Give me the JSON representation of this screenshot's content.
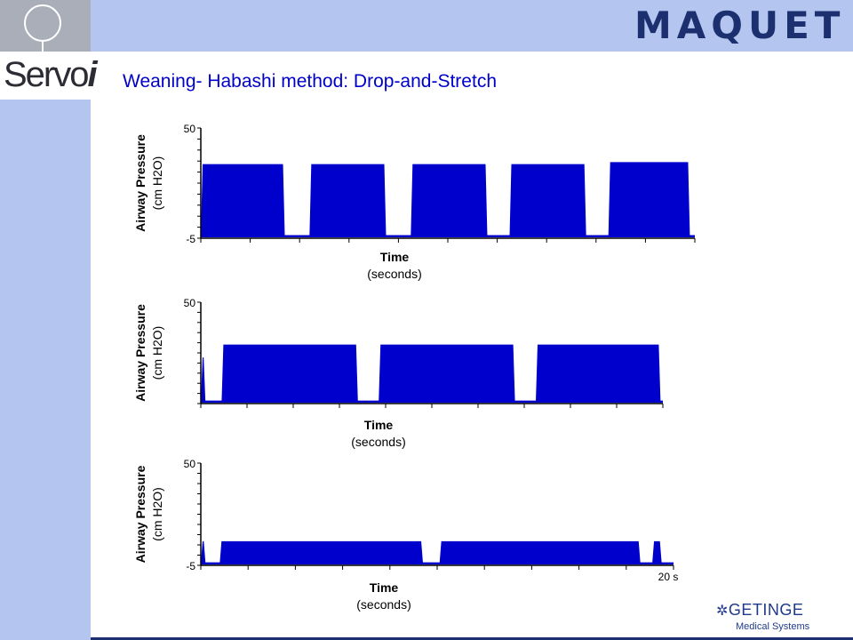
{
  "slide": {
    "title": "Weaning- Habashi method:  Drop-and-Stretch",
    "brand": "MAQUET",
    "product": "Servo",
    "product_suffix": "i",
    "footer_brand": "GETINGE",
    "footer_sub": "Medical Systems",
    "colors": {
      "band": "#b4c6f0",
      "title": "#0000c8",
      "trace": "#0000cc",
      "brand": "#1c2f6e"
    }
  },
  "chart_data": [
    {
      "type": "area",
      "ylabel": "Airway Pressure",
      "ylabel_unit": "(cm H2O)",
      "xlabel": "Time",
      "xlabel_unit": "(seconds)",
      "ylim": [
        -5,
        50
      ],
      "ytick_labels": [
        "50",
        "-5"
      ],
      "xtick_labels": [],
      "baseline": -4,
      "segments": [
        {
          "start": 0.0,
          "end": 0.17,
          "level": 32
        },
        {
          "start": 0.22,
          "end": 0.375,
          "level": 32
        },
        {
          "start": 0.425,
          "end": 0.58,
          "level": 32
        },
        {
          "start": 0.625,
          "end": 0.78,
          "level": 32
        },
        {
          "start": 0.825,
          "end": 0.99,
          "level": 33
        }
      ]
    },
    {
      "type": "area",
      "ylabel": "Airway Pressure",
      "ylabel_unit": "(cm H2O)",
      "xlabel": "Time",
      "xlabel_unit": "(seconds)",
      "ylim": [
        -5,
        50
      ],
      "ytick_labels": [
        "50"
      ],
      "xtick_labels": [],
      "baseline": -4,
      "segments": [
        {
          "start": 0.0,
          "end": 0.01,
          "level": 20
        },
        {
          "start": 0.045,
          "end": 0.34,
          "level": 27
        },
        {
          "start": 0.385,
          "end": 0.68,
          "level": 27
        },
        {
          "start": 0.725,
          "end": 0.995,
          "level": 27
        }
      ]
    },
    {
      "type": "area",
      "ylabel": "Airway Pressure",
      "ylabel_unit": "(cm H2O)",
      "xlabel": "Time",
      "xlabel_unit": "(seconds)",
      "ylim": [
        -5,
        50
      ],
      "ytick_labels": [
        "50",
        "-5"
      ],
      "xtick_labels": [
        "20 s"
      ],
      "baseline": -4,
      "segments": [
        {
          "start": 0.0,
          "end": 0.01,
          "level": 8
        },
        {
          "start": 0.04,
          "end": 0.47,
          "level": 8
        },
        {
          "start": 0.505,
          "end": 0.93,
          "level": 8
        },
        {
          "start": 0.955,
          "end": 0.975,
          "level": 8
        }
      ]
    }
  ]
}
